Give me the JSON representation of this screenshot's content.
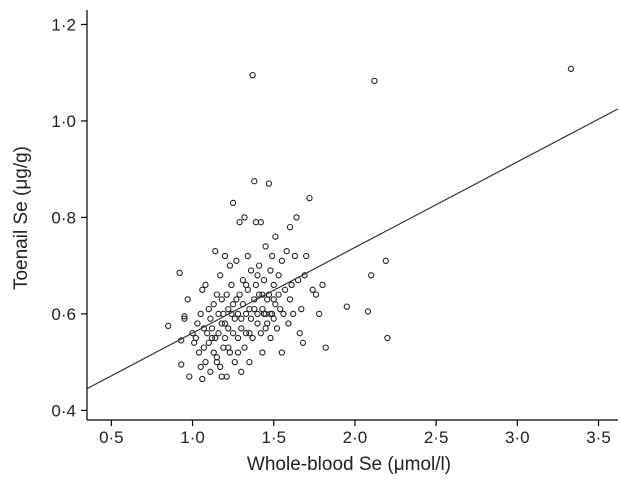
{
  "chart_data": {
    "type": "scatter",
    "title": "",
    "xlabel": "Whole-blood Se (μmol/l)",
    "ylabel": "Toenail Se (μg/g)",
    "xlim": [
      0.35,
      3.62
    ],
    "ylim": [
      0.38,
      1.23
    ],
    "x_ticks": [
      0.5,
      1.0,
      1.5,
      2.0,
      2.5,
      3.0,
      3.5
    ],
    "x_tick_labels": [
      "0·5",
      "1·0",
      "1·5",
      "2·0",
      "2·5",
      "3·0",
      "3·5"
    ],
    "y_ticks": [
      0.4,
      0.6,
      0.8,
      1.0,
      1.2
    ],
    "y_tick_labels": [
      "0·4",
      "0·6",
      "0·8",
      "1·0",
      "1·2"
    ],
    "grid": false,
    "legend": "none",
    "marker": "open-circle",
    "colors": {
      "points": "#222222",
      "line": "#333333",
      "axis": "#000000"
    },
    "regression_line": {
      "x": [
        0.35,
        3.62
      ],
      "y": [
        0.445,
        1.025
      ]
    },
    "points": [
      [
        0.85,
        0.575
      ],
      [
        0.92,
        0.685
      ],
      [
        0.93,
        0.545
      ],
      [
        0.93,
        0.495
      ],
      [
        0.95,
        0.59
      ],
      [
        0.95,
        0.595
      ],
      [
        0.97,
        0.63
      ],
      [
        0.98,
        0.47
      ],
      [
        1.0,
        0.56
      ],
      [
        1.01,
        0.54
      ],
      [
        1.02,
        0.55
      ],
      [
        1.03,
        0.58
      ],
      [
        1.04,
        0.52
      ],
      [
        1.05,
        0.6
      ],
      [
        1.05,
        0.49
      ],
      [
        1.06,
        0.65
      ],
      [
        1.06,
        0.465
      ],
      [
        1.07,
        0.53
      ],
      [
        1.07,
        0.57
      ],
      [
        1.08,
        0.66
      ],
      [
        1.08,
        0.5
      ],
      [
        1.09,
        0.56
      ],
      [
        1.1,
        0.61
      ],
      [
        1.1,
        0.54
      ],
      [
        1.11,
        0.59
      ],
      [
        1.11,
        0.48
      ],
      [
        1.12,
        0.57
      ],
      [
        1.13,
        0.62
      ],
      [
        1.13,
        0.52
      ],
      [
        1.14,
        0.73
      ],
      [
        1.14,
        0.55
      ],
      [
        1.15,
        0.64
      ],
      [
        1.15,
        0.5
      ],
      [
        1.16,
        0.6
      ],
      [
        1.16,
        0.56
      ],
      [
        1.17,
        0.49
      ],
      [
        1.17,
        0.68
      ],
      [
        1.18,
        0.58
      ],
      [
        1.18,
        0.63
      ],
      [
        1.19,
        0.53
      ],
      [
        1.19,
        0.6
      ],
      [
        1.2,
        0.72
      ],
      [
        1.2,
        0.55
      ],
      [
        1.21,
        0.64
      ],
      [
        1.21,
        0.47
      ],
      [
        1.22,
        0.57
      ],
      [
        1.22,
        0.61
      ],
      [
        1.23,
        0.7
      ],
      [
        1.23,
        0.52
      ],
      [
        1.24,
        0.6
      ],
      [
        1.24,
        0.66
      ],
      [
        1.25,
        0.83
      ],
      [
        1.25,
        0.56
      ],
      [
        1.26,
        0.59
      ],
      [
        1.26,
        0.5
      ],
      [
        1.27,
        0.63
      ],
      [
        1.27,
        0.71
      ],
      [
        1.28,
        0.55
      ],
      [
        1.28,
        0.6
      ],
      [
        1.29,
        0.79
      ],
      [
        1.29,
        0.64
      ],
      [
        1.3,
        0.48
      ],
      [
        1.3,
        0.57
      ],
      [
        1.31,
        0.62
      ],
      [
        1.31,
        0.67
      ],
      [
        1.32,
        0.53
      ],
      [
        1.32,
        0.8
      ],
      [
        1.33,
        0.6
      ],
      [
        1.33,
        0.56
      ],
      [
        1.34,
        0.65
      ],
      [
        1.34,
        0.72
      ],
      [
        1.35,
        0.5
      ],
      [
        1.35,
        0.61
      ],
      [
        1.36,
        0.59
      ],
      [
        1.36,
        0.69
      ],
      [
        1.37,
        1.095
      ],
      [
        1.37,
        0.55
      ],
      [
        1.38,
        0.875
      ],
      [
        1.38,
        0.63
      ],
      [
        1.39,
        0.66
      ],
      [
        1.39,
        0.79
      ],
      [
        1.4,
        0.58
      ],
      [
        1.4,
        0.6
      ],
      [
        1.41,
        0.64
      ],
      [
        1.41,
        0.7
      ],
      [
        1.42,
        0.56
      ],
      [
        1.42,
        0.79
      ],
      [
        1.43,
        0.61
      ],
      [
        1.43,
        0.52
      ],
      [
        1.44,
        0.67
      ],
      [
        1.44,
        0.6
      ],
      [
        1.45,
        0.74
      ],
      [
        1.45,
        0.57
      ],
      [
        1.46,
        0.63
      ],
      [
        1.46,
        0.58
      ],
      [
        1.47,
        0.87
      ],
      [
        1.47,
        0.64
      ],
      [
        1.48,
        0.69
      ],
      [
        1.48,
        0.55
      ],
      [
        1.49,
        0.6
      ],
      [
        1.49,
        0.72
      ],
      [
        1.5,
        0.66
      ],
      [
        1.5,
        0.59
      ],
      [
        1.51,
        0.62
      ],
      [
        1.51,
        0.76
      ],
      [
        1.52,
        0.57
      ],
      [
        1.53,
        0.64
      ],
      [
        1.53,
        0.68
      ],
      [
        1.54,
        0.61
      ],
      [
        1.55,
        0.71
      ],
      [
        1.55,
        0.52
      ],
      [
        1.56,
        0.6
      ],
      [
        1.57,
        0.65
      ],
      [
        1.58,
        0.73
      ],
      [
        1.59,
        0.58
      ],
      [
        1.6,
        0.78
      ],
      [
        1.6,
        0.63
      ],
      [
        1.61,
        0.66
      ],
      [
        1.62,
        0.6
      ],
      [
        1.63,
        0.72
      ],
      [
        1.64,
        0.8
      ],
      [
        1.65,
        0.67
      ],
      [
        1.66,
        0.56
      ],
      [
        1.67,
        0.61
      ],
      [
        1.68,
        0.54
      ],
      [
        1.69,
        0.68
      ],
      [
        1.7,
        0.72
      ],
      [
        1.72,
        0.84
      ],
      [
        1.74,
        0.65
      ],
      [
        1.76,
        0.64
      ],
      [
        1.78,
        0.6
      ],
      [
        1.8,
        0.66
      ],
      [
        1.82,
        0.53
      ],
      [
        1.95,
        0.615
      ],
      [
        2.08,
        0.605
      ],
      [
        2.1,
        0.68
      ],
      [
        2.12,
        1.083
      ],
      [
        2.19,
        0.71
      ],
      [
        2.2,
        0.55
      ],
      [
        3.33,
        1.108
      ],
      [
        1.15,
        0.51
      ],
      [
        1.2,
        0.58
      ],
      [
        1.25,
        0.62
      ],
      [
        1.3,
        0.59
      ],
      [
        1.35,
        0.56
      ],
      [
        1.4,
        0.68
      ],
      [
        1.45,
        0.6
      ],
      [
        1.5,
        0.63
      ],
      [
        1.28,
        0.52
      ],
      [
        1.33,
        0.66
      ],
      [
        1.38,
        0.61
      ],
      [
        1.43,
        0.64
      ],
      [
        1.48,
        0.6
      ],
      [
        1.22,
        0.53
      ],
      [
        1.18,
        0.47
      ],
      [
        1.12,
        0.55
      ]
    ]
  }
}
